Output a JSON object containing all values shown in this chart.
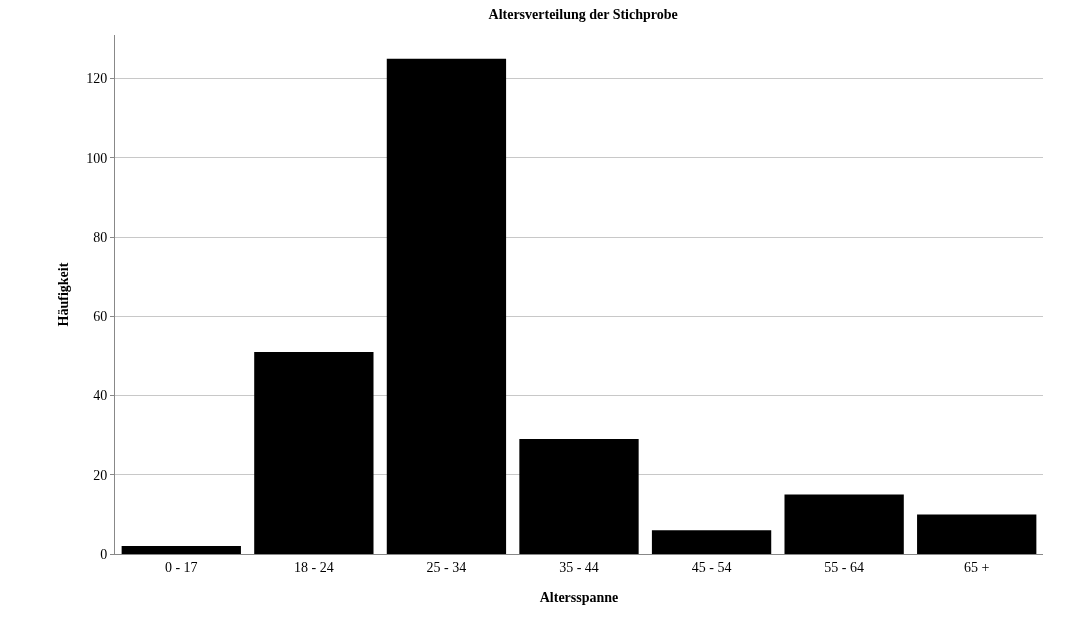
{
  "chart_data": {
    "type": "bar",
    "title": "Altersverteilung der Stichprobe",
    "xlabel": "Altersspanne",
    "ylabel": "Häufigkeit",
    "categories": [
      "0 - 17",
      "18 - 24",
      "25 - 34",
      "35 - 44",
      "45 - 54",
      "55 - 64",
      "65 +"
    ],
    "values": [
      2,
      51,
      125,
      29,
      6,
      15,
      10
    ],
    "color": "#000000",
    "ylim": [
      0,
      131
    ],
    "yticks": [
      0,
      20,
      40,
      60,
      80,
      100,
      120
    ],
    "grid": "y"
  }
}
